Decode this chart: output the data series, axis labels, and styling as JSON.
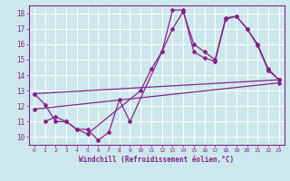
{
  "xlabel": "Windchill (Refroidissement éolien,°C)",
  "xlim": [
    -0.5,
    23.5
  ],
  "ylim": [
    9.5,
    18.5
  ],
  "xticks": [
    0,
    1,
    2,
    3,
    4,
    5,
    6,
    7,
    8,
    9,
    10,
    11,
    12,
    13,
    14,
    15,
    16,
    17,
    18,
    19,
    20,
    21,
    22,
    23
  ],
  "yticks": [
    10,
    11,
    12,
    13,
    14,
    15,
    16,
    17,
    18
  ],
  "bg_color": "#cce8ec",
  "line_color": "#882288",
  "grid_color": "#ffffff",
  "line1": {
    "x": [
      0,
      1,
      2,
      3,
      4,
      5,
      6,
      7,
      8,
      9,
      12,
      13,
      14,
      15,
      16,
      17,
      18,
      19,
      20,
      21,
      22,
      23
    ],
    "y": [
      12.8,
      12.1,
      11.0,
      11.0,
      10.5,
      10.5,
      9.8,
      10.3,
      12.4,
      11.0,
      15.5,
      18.2,
      18.2,
      15.5,
      15.1,
      14.9,
      17.6,
      17.8,
      17.0,
      16.0,
      14.4,
      13.7
    ]
  },
  "line2": {
    "x": [
      1,
      2,
      3,
      4,
      5,
      10,
      11,
      12,
      13,
      14,
      15,
      16,
      17,
      18,
      19,
      20,
      21,
      22,
      23
    ],
    "y": [
      11.0,
      11.3,
      11.0,
      10.5,
      10.2,
      13.0,
      14.4,
      15.5,
      17.0,
      18.1,
      16.0,
      15.5,
      15.0,
      17.7,
      17.8,
      17.0,
      15.9,
      14.3,
      13.7
    ]
  },
  "trend1": {
    "x": [
      0,
      23
    ],
    "y": [
      12.8,
      13.7
    ]
  },
  "trend2": {
    "x": [
      0,
      23
    ],
    "y": [
      11.8,
      13.5
    ]
  }
}
